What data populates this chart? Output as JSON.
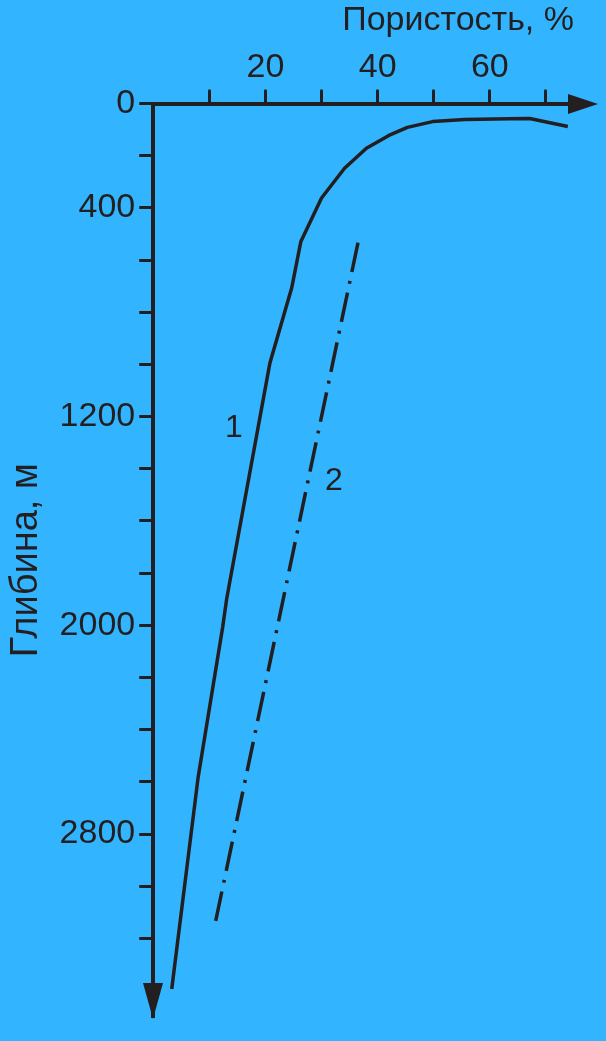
{
  "chart_data": {
    "type": "line",
    "xlabel": "Пористость, %",
    "ylabel": "Глибина, м",
    "xlim": [
      0,
      75
    ],
    "xticks": [
      {
        "value": 10,
        "label": null
      },
      20,
      {
        "value": 30,
        "label": null
      },
      40,
      {
        "value": 50,
        "label": null
      },
      60,
      {
        "value": 70,
        "label": null
      }
    ],
    "ylim": [
      3500,
      0
    ],
    "yticks": [
      0,
      {
        "value": 200,
        "label": null
      },
      400,
      {
        "value": 600,
        "label": null
      },
      {
        "value": 800,
        "label": null
      },
      {
        "value": 1000,
        "label": null
      },
      1200,
      {
        "value": 1400,
        "label": null
      },
      {
        "value": 1600,
        "label": null
      },
      {
        "value": 1800,
        "label": null
      },
      2000,
      {
        "value": 2200,
        "label": null
      },
      {
        "value": 2400,
        "label": null
      },
      {
        "value": 2600,
        "label": null
      },
      2800,
      {
        "value": 3000,
        "label": null
      },
      {
        "value": 3200,
        "label": null
      }
    ],
    "grid": false,
    "legend": false,
    "marker": "none",
    "series": [
      {
        "name": "1",
        "color": "#231f20",
        "line_style": "solid",
        "x": [
          73.9,
          67.1,
          55.5,
          49.8,
          45.3,
          42,
          38,
          34.1,
          30,
          26.3,
          24.7,
          20.8,
          13.1,
          12.4,
          8,
          3.3
        ],
        "values": [
          88,
          57,
          61,
          69,
          91,
          122,
          171,
          248,
          362,
          530,
          705,
          994,
          1897,
          2004,
          2583,
          3394
        ]
      },
      {
        "name": "2",
        "color": "#231f20",
        "line_style": "dashed",
        "x": [
          36.5,
          11
        ],
        "values": [
          533,
          3147
        ]
      }
    ]
  }
}
